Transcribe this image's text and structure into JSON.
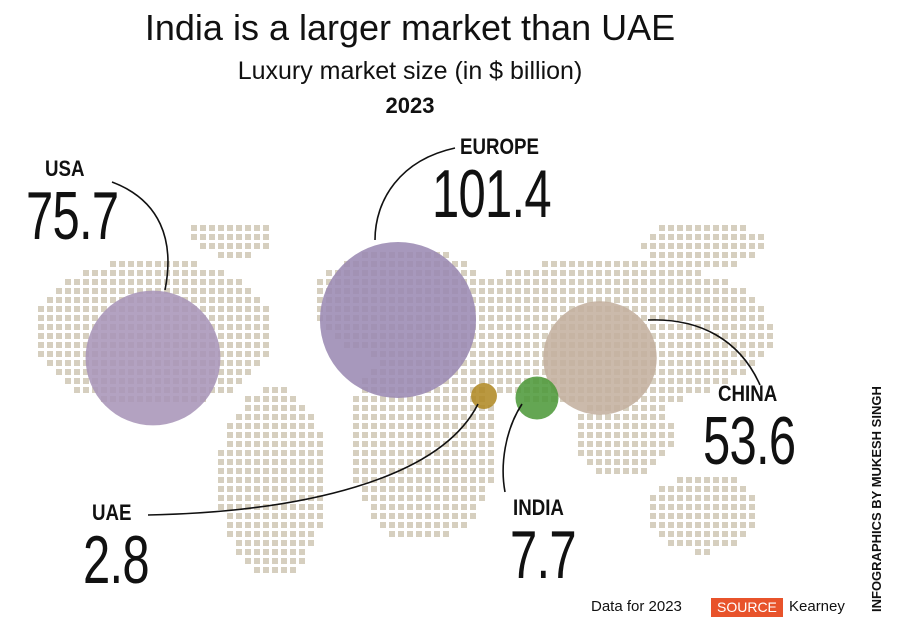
{
  "chart_data": {
    "type": "bubble-map",
    "title": "India is a larger market than UAE",
    "subtitle": "Luxury market size (in $ billion)",
    "year": "2023",
    "unit": "$ billion",
    "regions": [
      {
        "name": "USA",
        "value": 75.7,
        "value_label": "75.7",
        "color": "#a995b8"
      },
      {
        "name": "EUROPE",
        "value": 101.4,
        "value_label": "101.4",
        "color": "#9b8ab3"
      },
      {
        "name": "CHINA",
        "value": 53.6,
        "value_label": "53.6",
        "color": "#c4b19f"
      },
      {
        "name": "UAE",
        "value": 2.8,
        "value_label": "2.8",
        "color": "#b08a25"
      },
      {
        "name": "INDIA",
        "value": 7.7,
        "value_label": "7.7",
        "color": "#4e9a3b"
      }
    ]
  },
  "footer": {
    "note": "Data for 2023",
    "source_label": "SOURCE",
    "source": "Kearney",
    "credit": "INFOGRAPHICS BY MUKESH SINGH"
  },
  "colors": {
    "dots": "#d6cfbf",
    "accent": "#e8532b"
  }
}
